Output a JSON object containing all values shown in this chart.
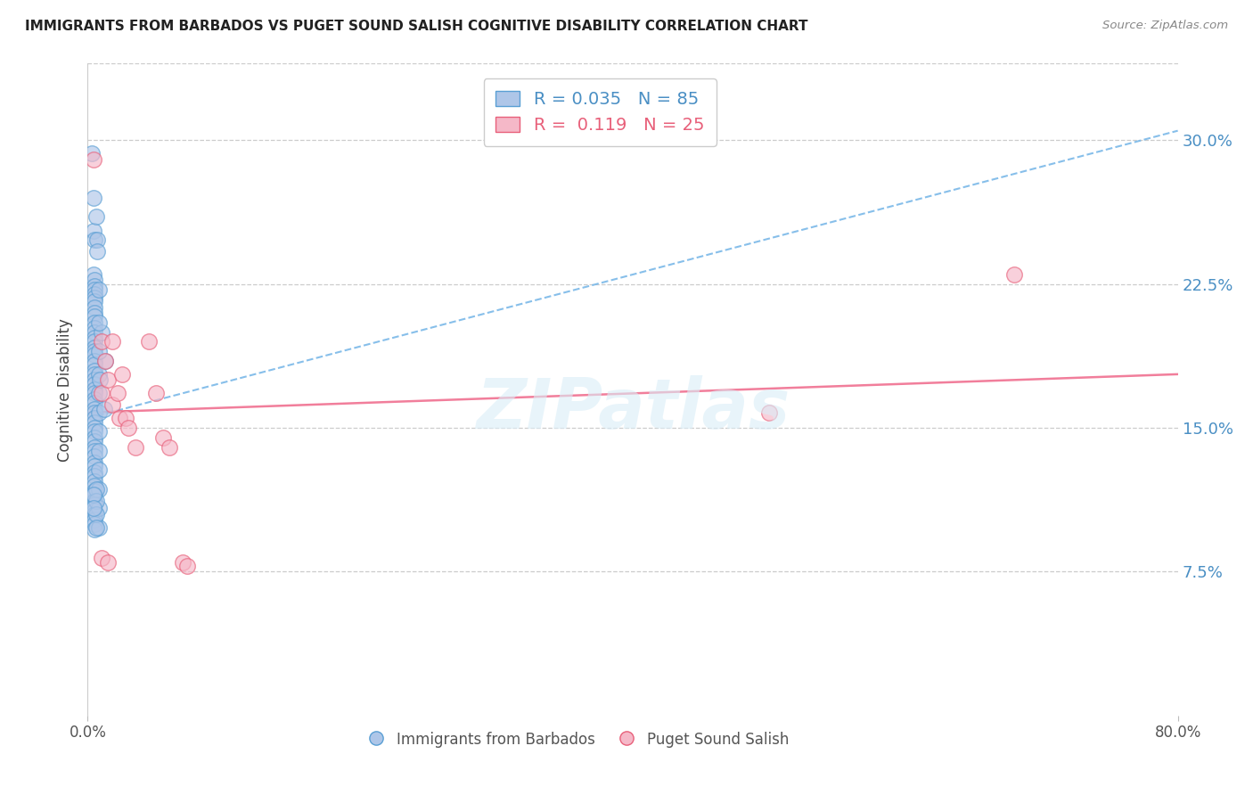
{
  "title": "IMMIGRANTS FROM BARBADOS VS PUGET SOUND SALISH COGNITIVE DISABILITY CORRELATION CHART",
  "source": "Source: ZipAtlas.com",
  "ylabel": "Cognitive Disability",
  "ytick_labels": [
    "7.5%",
    "15.0%",
    "22.5%",
    "30.0%"
  ],
  "ytick_values": [
    0.075,
    0.15,
    0.225,
    0.3
  ],
  "xlim": [
    0.0,
    0.8
  ],
  "ylim": [
    0.0,
    0.34
  ],
  "legend_label_blue": "Immigrants from Barbados",
  "legend_label_pink": "Puget Sound Salish",
  "blue_color": "#aec6e8",
  "pink_color": "#f5b8c8",
  "blue_edge_color": "#5a9fd4",
  "pink_edge_color": "#e8607a",
  "blue_line_color": "#7ab8e8",
  "pink_line_color": "#f07090",
  "blue_scatter": [
    [
      0.004,
      0.27
    ],
    [
      0.004,
      0.253
    ],
    [
      0.005,
      0.248
    ],
    [
      0.004,
      0.23
    ],
    [
      0.005,
      0.227
    ],
    [
      0.005,
      0.224
    ],
    [
      0.005,
      0.222
    ],
    [
      0.005,
      0.22
    ],
    [
      0.005,
      0.218
    ],
    [
      0.005,
      0.216
    ],
    [
      0.005,
      0.213
    ],
    [
      0.005,
      0.21
    ],
    [
      0.005,
      0.208
    ],
    [
      0.005,
      0.205
    ],
    [
      0.005,
      0.202
    ],
    [
      0.005,
      0.2
    ],
    [
      0.005,
      0.197
    ],
    [
      0.005,
      0.195
    ],
    [
      0.005,
      0.192
    ],
    [
      0.005,
      0.19
    ],
    [
      0.005,
      0.188
    ],
    [
      0.005,
      0.185
    ],
    [
      0.005,
      0.183
    ],
    [
      0.005,
      0.18
    ],
    [
      0.005,
      0.178
    ],
    [
      0.005,
      0.175
    ],
    [
      0.005,
      0.173
    ],
    [
      0.005,
      0.17
    ],
    [
      0.005,
      0.168
    ],
    [
      0.005,
      0.165
    ],
    [
      0.005,
      0.163
    ],
    [
      0.005,
      0.16
    ],
    [
      0.005,
      0.158
    ],
    [
      0.005,
      0.155
    ],
    [
      0.005,
      0.153
    ],
    [
      0.005,
      0.15
    ],
    [
      0.005,
      0.148
    ],
    [
      0.005,
      0.145
    ],
    [
      0.005,
      0.143
    ],
    [
      0.005,
      0.14
    ],
    [
      0.005,
      0.138
    ],
    [
      0.005,
      0.135
    ],
    [
      0.005,
      0.132
    ],
    [
      0.005,
      0.13
    ],
    [
      0.005,
      0.127
    ],
    [
      0.005,
      0.125
    ],
    [
      0.005,
      0.122
    ],
    [
      0.005,
      0.12
    ],
    [
      0.005,
      0.117
    ],
    [
      0.005,
      0.115
    ],
    [
      0.005,
      0.112
    ],
    [
      0.005,
      0.11
    ],
    [
      0.005,
      0.107
    ],
    [
      0.005,
      0.105
    ],
    [
      0.005,
      0.102
    ],
    [
      0.005,
      0.1
    ],
    [
      0.005,
      0.097
    ],
    [
      0.01,
      0.2
    ],
    [
      0.013,
      0.185
    ],
    [
      0.003,
      0.293
    ],
    [
      0.006,
      0.26
    ],
    [
      0.007,
      0.248
    ],
    [
      0.007,
      0.242
    ],
    [
      0.008,
      0.222
    ],
    [
      0.008,
      0.205
    ],
    [
      0.008,
      0.19
    ],
    [
      0.008,
      0.178
    ],
    [
      0.008,
      0.168
    ],
    [
      0.008,
      0.158
    ],
    [
      0.008,
      0.148
    ],
    [
      0.008,
      0.138
    ],
    [
      0.008,
      0.128
    ],
    [
      0.008,
      0.118
    ],
    [
      0.008,
      0.108
    ],
    [
      0.008,
      0.098
    ],
    [
      0.006,
      0.118
    ],
    [
      0.006,
      0.112
    ],
    [
      0.006,
      0.105
    ],
    [
      0.006,
      0.098
    ],
    [
      0.009,
      0.175
    ],
    [
      0.012,
      0.16
    ],
    [
      0.004,
      0.115
    ],
    [
      0.004,
      0.108
    ]
  ],
  "pink_scatter": [
    [
      0.004,
      0.29
    ],
    [
      0.01,
      0.195
    ],
    [
      0.01,
      0.168
    ],
    [
      0.013,
      0.185
    ],
    [
      0.015,
      0.175
    ],
    [
      0.018,
      0.195
    ],
    [
      0.018,
      0.162
    ],
    [
      0.022,
      0.168
    ],
    [
      0.023,
      0.155
    ],
    [
      0.025,
      0.178
    ],
    [
      0.028,
      0.155
    ],
    [
      0.03,
      0.15
    ],
    [
      0.035,
      0.14
    ],
    [
      0.045,
      0.195
    ],
    [
      0.05,
      0.168
    ],
    [
      0.055,
      0.145
    ],
    [
      0.06,
      0.14
    ],
    [
      0.07,
      0.08
    ],
    [
      0.073,
      0.078
    ],
    [
      0.01,
      0.082
    ],
    [
      0.015,
      0.08
    ],
    [
      0.5,
      0.158
    ],
    [
      0.68,
      0.23
    ]
  ],
  "blue_trend_x": [
    0.0,
    0.8
  ],
  "blue_trend_y": [
    0.155,
    0.305
  ],
  "pink_trend_x": [
    0.0,
    0.8
  ],
  "pink_trend_y": [
    0.158,
    0.178
  ]
}
